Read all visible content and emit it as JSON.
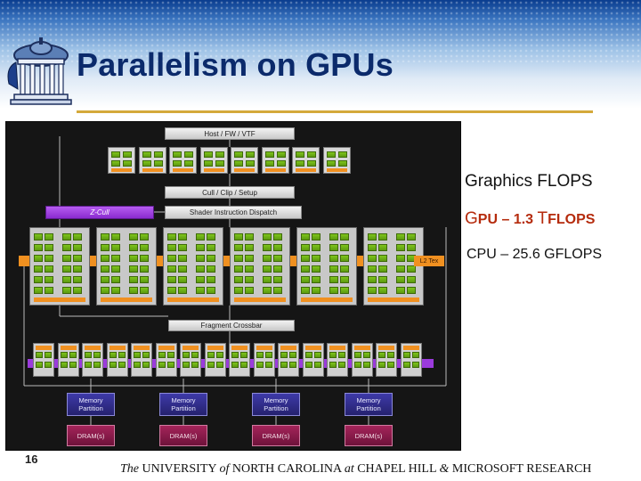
{
  "slide": {
    "title": "Parallelism on GPUs",
    "number": "16",
    "accent_color": "#d4a93a",
    "title_color": "#0b2a6b",
    "logo_icon": "old-well-icon"
  },
  "diagram": {
    "host_label": "Host / FW / VTF",
    "cull_label": "Cull / Clip / Setup",
    "zcull_label": "Z-Cull",
    "dispatch_label": "Shader Instruction Dispatch",
    "l2_label": "L2 Tex",
    "crossbar_label": "Fragment Crossbar",
    "memory_partition_label": "Memory Partition",
    "dram_label": "DRAM(s)",
    "vertex_units": 8,
    "shader_clusters": 6,
    "fragment_units": 16,
    "memory_partitions": 4,
    "colors": {
      "shader_green": "#7ec41c",
      "memory_blue": "#2e2b86",
      "dram_maroon": "#8a1a48",
      "zcull_purple": "#9b3bdc",
      "l2_orange": "#f09020"
    }
  },
  "stats": {
    "heading": "Graphics FLOPS",
    "gpu_G": "G",
    "gpu_mid": "PU – 1.3 ",
    "gpu_T": "T",
    "gpu_end": "FLOPS",
    "cpu": "CPU – 25.6 GFLOPS"
  },
  "footer": {
    "the": "The",
    "university": " UNIVERSITY ",
    "of": "of",
    "north_carolina": " NORTH CAROLINA ",
    "at": "at",
    "chapel_hill": " CHAPEL HILL ",
    "amp": "&",
    "microsoft": " MICROSOFT RESEARCH"
  }
}
